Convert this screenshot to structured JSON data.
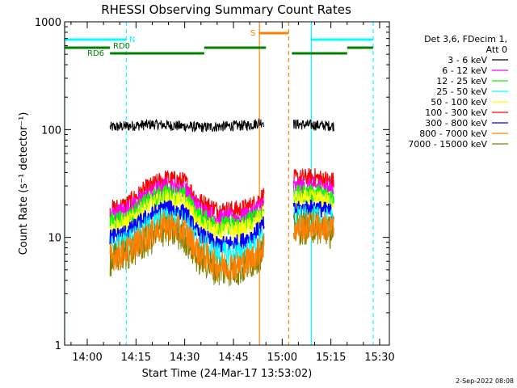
{
  "chart_data": {
    "type": "line",
    "title": "RHESSI Observing Summary Count Rates",
    "xlabel": "Start Time (24-Mar-17 13:53:02)",
    "ylabel": "Count Rate (s⁻¹ detector⁻¹)",
    "y_scale": "log",
    "ylim": [
      1,
      1000
    ],
    "xlim": [
      "13:53:02",
      "15:33:00"
    ],
    "x_ticks": [
      "14:00",
      "14:15",
      "14:30",
      "14:45",
      "15:00",
      "15:15",
      "15:30"
    ],
    "y_ticks": [
      "1",
      "10",
      "100",
      "1000"
    ],
    "legend": {
      "placement": "right",
      "header": [
        "Det 3,6, FDecim 1,",
        "Att 0"
      ],
      "entries": [
        {
          "name": "3 - 6 keV",
          "color": "#000000"
        },
        {
          "name": "6 - 12 keV",
          "color": "#ff00ff"
        },
        {
          "name": "12 - 25 keV",
          "color": "#00ff00"
        },
        {
          "name": "25 - 50 keV",
          "color": "#00ffff"
        },
        {
          "name": "50 - 100 keV",
          "color": "#ffff00"
        },
        {
          "name": "100 - 300 keV",
          "color": "#ff0000"
        },
        {
          "name": "300 - 800 keV",
          "color": "#0000ff"
        },
        {
          "name": "800 - 7000 keV",
          "color": "#ff8000"
        },
        {
          "name": "7000 - 15000 keV",
          "color": "#808000"
        }
      ]
    },
    "series": [
      {
        "name": "3 - 6 keV",
        "color": "#000000",
        "width": 1.0,
        "noise": 0.05,
        "x": [
          "14:07",
          "14:20",
          "14:35",
          "14:50",
          "14:54",
          "15:04",
          "15:10",
          "15:16"
        ],
        "y": [
          105,
          112,
          105,
          110,
          118,
          112,
          110,
          108
        ]
      },
      {
        "name": "100 - 300 keV",
        "color": "#ff0000",
        "width": 1.2,
        "noise": 0.09,
        "x": [
          "14:07",
          "14:12",
          "14:18",
          "14:24",
          "14:30",
          "14:34",
          "14:40",
          "14:47",
          "14:51",
          "14:54",
          "15:04",
          "15:10",
          "15:16"
        ],
        "y": [
          18,
          20,
          28,
          35,
          33,
          22,
          18,
          18,
          20,
          24,
          35,
          36,
          33
        ]
      },
      {
        "name": "6 - 12 keV",
        "color": "#ff00ff",
        "width": 1.2,
        "noise": 0.09,
        "x": [
          "14:07",
          "14:12",
          "14:18",
          "14:24",
          "14:30",
          "14:34",
          "14:40",
          "14:47",
          "14:51",
          "14:54",
          "15:04",
          "15:10",
          "15:16"
        ],
        "y": [
          16,
          18,
          24,
          30,
          28,
          19,
          15,
          15,
          17,
          21,
          29,
          30,
          28
        ]
      },
      {
        "name": "12 - 25 keV",
        "color": "#00ff00",
        "width": 1.2,
        "noise": 0.09,
        "x": [
          "14:07",
          "14:12",
          "14:18",
          "14:24",
          "14:30",
          "14:34",
          "14:40",
          "14:47",
          "14:51",
          "14:54",
          "15:04",
          "15:10",
          "15:16"
        ],
        "y": [
          14,
          15,
          21,
          26,
          24,
          16,
          13,
          13,
          15,
          18,
          25,
          26,
          24
        ]
      },
      {
        "name": "50 - 100 keV",
        "color": "#ffff00",
        "width": 1.0,
        "noise": 0.09,
        "x": [
          "14:07",
          "14:12",
          "14:18",
          "14:24",
          "14:30",
          "14:34",
          "14:40",
          "14:47",
          "14:51",
          "14:54",
          "15:04",
          "15:10",
          "15:16"
        ],
        "y": [
          12.5,
          13.5,
          19,
          23,
          21,
          14,
          11.5,
          11.5,
          13,
          16,
          22,
          23,
          21
        ]
      },
      {
        "name": "300 - 800 keV",
        "color": "#0000ff",
        "width": 1.6,
        "noise": 0.08,
        "x": [
          "14:07",
          "14:12",
          "14:18",
          "14:24",
          "14:30",
          "14:34",
          "14:40",
          "14:47",
          "14:51",
          "14:54",
          "15:04",
          "15:10",
          "15:16"
        ],
        "y": [
          10,
          11,
          15,
          19,
          17,
          11,
          8.5,
          9,
          10.5,
          13,
          18,
          19,
          17
        ]
      },
      {
        "name": "25 - 50 keV",
        "color": "#00ffff",
        "width": 1.0,
        "noise": 0.12,
        "x": [
          "14:07",
          "14:12",
          "14:18",
          "14:24",
          "14:30",
          "14:34",
          "14:40",
          "14:47",
          "14:51",
          "14:54",
          "15:04",
          "15:10",
          "15:16"
        ],
        "y": [
          8,
          9,
          12,
          15,
          14,
          9,
          7,
          7,
          8,
          10,
          15,
          15,
          14
        ]
      },
      {
        "name": "7000 - 15000 keV",
        "color": "#808000",
        "width": 1.0,
        "noise": 0.16,
        "x": [
          "14:07",
          "14:12",
          "14:18",
          "14:24",
          "14:30",
          "14:34",
          "14:40",
          "14:47",
          "14:51",
          "14:54",
          "15:04",
          "15:10",
          "15:16"
        ],
        "y": [
          6,
          7,
          9,
          12,
          10,
          6.5,
          5,
          5,
          6,
          7.5,
          12,
          12.5,
          11
        ]
      },
      {
        "name": "800 - 7000 keV",
        "color": "#ff8000",
        "width": 1.2,
        "noise": 0.14,
        "x": [
          "14:07",
          "14:12",
          "14:18",
          "14:24",
          "14:30",
          "14:34",
          "14:40",
          "14:47",
          "14:51",
          "14:54",
          "15:04",
          "15:10",
          "15:16"
        ],
        "y": [
          6.5,
          7.5,
          10,
          13,
          11.5,
          7.5,
          5.5,
          5.5,
          6.5,
          8,
          12,
          13,
          12
        ]
      }
    ],
    "data_gaps": [
      [
        "14:54:30",
        "15:03:30"
      ]
    ],
    "vlines": [
      {
        "x": "13:53:02",
        "color": "#00ffff",
        "style": "solid"
      },
      {
        "x": "14:12",
        "color": "#00ffff",
        "style": "dashed"
      },
      {
        "x": "14:53",
        "color": "#ff8000",
        "style": "solid"
      },
      {
        "x": "15:02",
        "color": "#ff8000",
        "style": "dashed"
      },
      {
        "x": "15:09",
        "color": "#00ffff",
        "style": "solid"
      },
      {
        "x": "15:28",
        "color": "#00ffff",
        "style": "dashed"
      }
    ],
    "flag_bars": [
      {
        "label": "N",
        "color": "#00ffff",
        "segments": [
          [
            "13:53:02",
            "14:12"
          ],
          [
            "15:09",
            "15:28"
          ]
        ]
      },
      {
        "label": "S",
        "color": "#ff8000",
        "segments": [
          [
            "14:53",
            "15:02"
          ]
        ]
      },
      {
        "label": "RD0",
        "color": "#008000",
        "segments": [
          [
            "13:53:02",
            "14:07"
          ],
          [
            "14:36",
            "14:55"
          ],
          [
            "15:20",
            "15:28"
          ]
        ]
      },
      {
        "label": "RD6",
        "color": "#008000",
        "segments": [
          [
            "14:07",
            "14:36"
          ],
          [
            "15:03",
            "15:20"
          ]
        ]
      }
    ]
  },
  "footer": {
    "timestamp": "2-Sep-2022 08:08"
  }
}
